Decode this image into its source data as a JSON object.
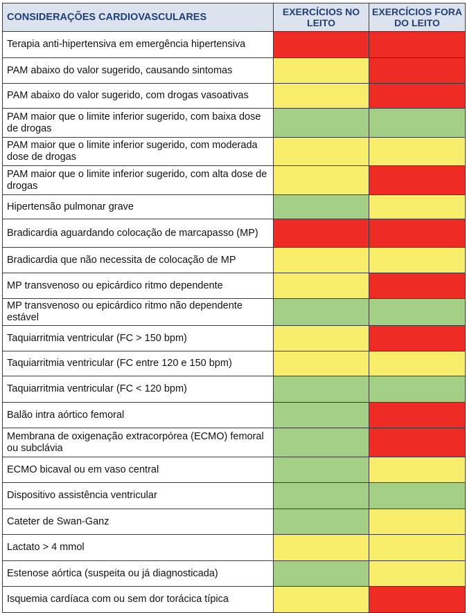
{
  "header": {
    "col1": "CONSIDERAÇÕES CARDIOVASCULARES",
    "col2": "EXERCÍCIOS NO LEITO",
    "col3": "EXERCÍCIOS FORA DO LEITO"
  },
  "colors": {
    "red": "#ee2b24",
    "yellow": "#f8ed6b",
    "green": "#a2cf85"
  },
  "rows": [
    {
      "label": "Terapia anti-hipertensiva em emergência hipertensiva",
      "no_leito": "red",
      "fora_leito": "red"
    },
    {
      "label": "PAM abaixo do valor sugerido, causando sintomas",
      "no_leito": "yellow",
      "fora_leito": "red"
    },
    {
      "label": "PAM abaixo do valor sugerido, com drogas vasoativas",
      "no_leito": "yellow",
      "fora_leito": "red"
    },
    {
      "label": "PAM maior que o limite inferior sugerido, com baixa dose de drogas",
      "no_leito": "green",
      "fora_leito": "green"
    },
    {
      "label": "PAM maior que o limite inferior sugerido, com moderada dose de drogas",
      "no_leito": "yellow",
      "fora_leito": "yellow"
    },
    {
      "label": "PAM maior que o limite inferior sugerido, com alta dose de drogas",
      "no_leito": "yellow",
      "fora_leito": "red"
    },
    {
      "label": "Hipertensão pulmonar grave",
      "no_leito": "green",
      "fora_leito": "yellow"
    },
    {
      "label": "Bradicardia aguardando colocação de marcapasso (MP)",
      "no_leito": "red",
      "fora_leito": "red"
    },
    {
      "label": "Bradicardia que não necessita de colocação de MP",
      "no_leito": "yellow",
      "fora_leito": "yellow"
    },
    {
      "label": "MP transvenoso ou epicárdico ritmo dependente",
      "no_leito": "yellow",
      "fora_leito": "red"
    },
    {
      "label": "MP transvenoso ou epicárdico ritmo não dependente estável",
      "no_leito": "green",
      "fora_leito": "green"
    },
    {
      "label": "Taquiarritmia ventricular (FC > 150 bpm)",
      "no_leito": "yellow",
      "fora_leito": "red"
    },
    {
      "label": "Taquiarritmia ventricular (FC entre 120 e 150 bpm)",
      "no_leito": "yellow",
      "fora_leito": "yellow"
    },
    {
      "label": "Taquiarritmia ventricular (FC < 120 bpm)",
      "no_leito": "green",
      "fora_leito": "green"
    },
    {
      "label": "Balão intra aórtico femoral",
      "no_leito": "green",
      "fora_leito": "red"
    },
    {
      "label": "Membrana de oxigenação extracorpórea (ECMO) femoral ou subclávia",
      "no_leito": "green",
      "fora_leito": "red"
    },
    {
      "label": "ECMO bicaval ou em vaso central",
      "no_leito": "green",
      "fora_leito": "yellow"
    },
    {
      "label": "Dispositivo assistência ventricular",
      "no_leito": "green",
      "fora_leito": "green"
    },
    {
      "label": "Cateter de Swan-Ganz",
      "no_leito": "green",
      "fora_leito": "yellow"
    },
    {
      "label": "Lactato > 4 mmol",
      "no_leito": "yellow",
      "fora_leito": "yellow"
    },
    {
      "label": "Estenose aórtica (suspeita ou já diagnosticada)",
      "no_leito": "green",
      "fora_leito": "yellow"
    },
    {
      "label": "Isquemia cardíaca com ou sem dor torácica típica",
      "no_leito": "yellow",
      "fora_leito": "red"
    }
  ]
}
